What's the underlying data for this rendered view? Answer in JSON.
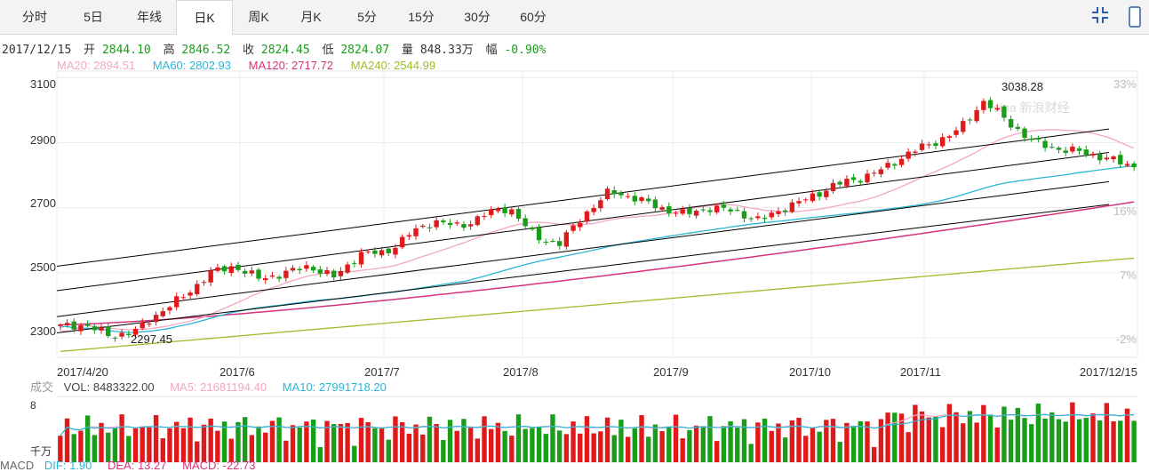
{
  "tabs": [
    {
      "label": "分时"
    },
    {
      "label": "5日"
    },
    {
      "label": "年线"
    },
    {
      "label": "日K"
    },
    {
      "label": "周K"
    },
    {
      "label": "月K"
    },
    {
      "label": "5分"
    },
    {
      "label": "15分"
    },
    {
      "label": "30分"
    },
    {
      "label": "60分"
    }
  ],
  "active_tab": "日K",
  "toolbar": {
    "compress_icon": "compress-icon",
    "scroll_icon": "scrollbar"
  },
  "info": {
    "date": "2017/12/15",
    "open_label": "开",
    "open": "2844.10",
    "high_label": "高",
    "high": "2846.52",
    "close_label": "收",
    "close": "2824.45",
    "low_label": "低",
    "low": "2824.07",
    "vol_label": "量",
    "vol": "848.33万",
    "chg_label": "幅",
    "chg": "-0.90%"
  },
  "ma": {
    "ma20": "MA20: 2894.51",
    "ma60": "MA60: 2802.93",
    "ma120": "MA120: 2717.72",
    "ma240": "MA240: 2544.99"
  },
  "colors": {
    "up": "#e0191b",
    "down": "#1a9d1a",
    "ma20": "#f2a7c2",
    "ma60": "#2bb5d5",
    "ma120": "#d6337d",
    "ma240": "#9cbd2a",
    "channel": "#000000"
  },
  "watermark": "sina 新浪财经",
  "volume": {
    "label": "成交",
    "vol": "VOL: 8483322.00",
    "ma5": "MA5: 21681194.40",
    "ma10": "MA10: 27991718.20",
    "ytop": "8",
    "unit": "千万"
  },
  "macd": {
    "label": "MACD",
    "dif": "DIF: 1.90",
    "dea": "DEA: 13.27",
    "macd": "MACD: -22.73"
  },
  "chart_data": {
    "type": "candlestick",
    "y_ticks": [
      "3100",
      "2900",
      "2700",
      "2500",
      "2300"
    ],
    "y_range": [
      2240,
      3120
    ],
    "pct_ticks": [
      "33%",
      "16%",
      "7%",
      "-2%"
    ],
    "x_labels": [
      "2017/4/20",
      "2017/6",
      "2017/7",
      "2017/8",
      "2017/9",
      "2017/10",
      "2017/11",
      "2017/12/15"
    ],
    "annotations": {
      "low": "2297.45",
      "high": "3038.28"
    },
    "ma240_range": [
      2258,
      2545
    ],
    "ma120_range": [
      2340,
      2718
    ],
    "channel_lines": [
      [
        2520,
        2942
      ],
      [
        2445,
        2870
      ],
      [
        2365,
        2780
      ],
      [
        2315,
        2710
      ]
    ],
    "key_closes": [
      2335,
      2340,
      2305,
      2320,
      2380,
      2430,
      2500,
      2520,
      2480,
      2500,
      2520,
      2485,
      2560,
      2560,
      2620,
      2660,
      2640,
      2680,
      2700,
      2610,
      2590,
      2680,
      2750,
      2730,
      2700,
      2680,
      2700,
      2690,
      2660,
      2700,
      2730,
      2770,
      2790,
      2820,
      2870,
      2900,
      2940,
      3030,
      2960,
      2900,
      2880,
      2870,
      2850,
      2824
    ]
  }
}
